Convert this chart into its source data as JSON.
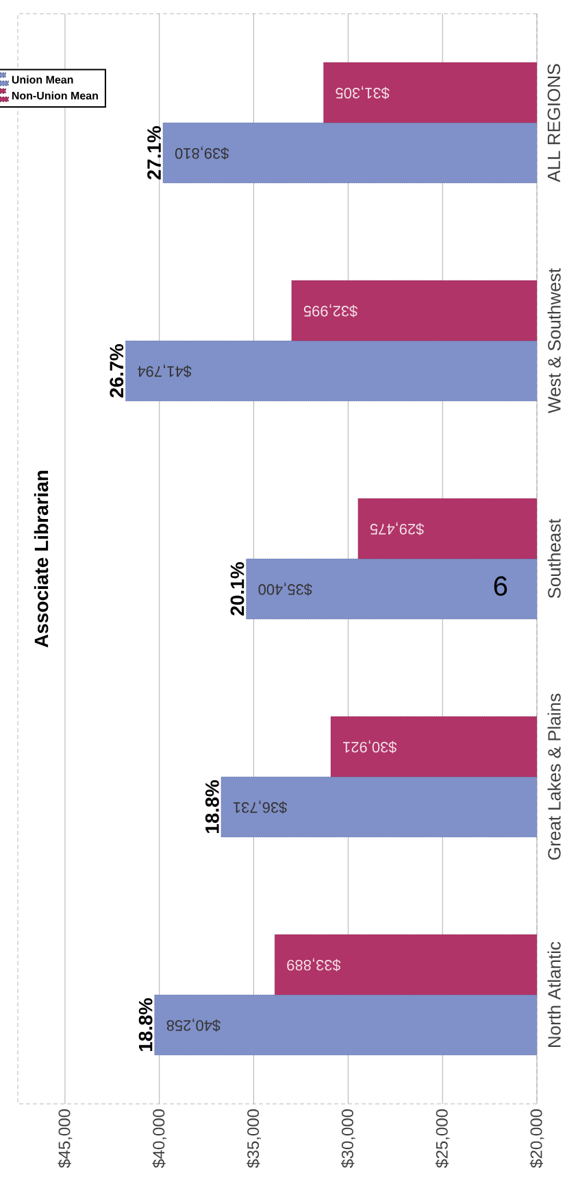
{
  "chart_data": {
    "type": "bar",
    "orientation": "horizontal",
    "title": "Associate Librarian",
    "categories": [
      "ALL REGIONS",
      "West & Southwest",
      "Southeast",
      "Great Lakes & Plains",
      "North Atlantic"
    ],
    "series": [
      {
        "name": "Union Mean",
        "color": "#8090c8",
        "values": [
          39810,
          41794,
          35400,
          36731,
          40258
        ],
        "value_labels": [
          "$39,810",
          "$41,794",
          "$35,400",
          "$36,731",
          "$40,258"
        ]
      },
      {
        "name": "Non-Union Mean",
        "color": "#b03468",
        "values": [
          31305,
          32995,
          29475,
          30921,
          33889
        ],
        "value_labels": [
          "$31,305",
          "$32,995",
          "$29,475",
          "$30,921",
          "$33,889"
        ]
      }
    ],
    "xlim": [
      47500,
      20000
    ],
    "xticks": [
      {
        "value": 45000,
        "label": "$45,000"
      },
      {
        "value": 40000,
        "label": "$40,000"
      },
      {
        "value": 35000,
        "label": "$35,000"
      },
      {
        "value": 30000,
        "label": "$30,000"
      },
      {
        "value": 25000,
        "label": "$25,000"
      },
      {
        "value": 20000,
        "label": "$20,000"
      }
    ],
    "grid": "x",
    "legend": "top left",
    "annotations": [
      {
        "text": "27.1%",
        "y": "ALL REGIONS",
        "x": 39810
      },
      {
        "text": "26.7%",
        "y": "West & Southwest",
        "x": 41794
      },
      {
        "text": "20.1%",
        "y": "Southeast",
        "x": 35400
      },
      {
        "text": "18.8%",
        "y": "Great Lakes & Plains",
        "x": 36731
      },
      {
        "text": "18.8%",
        "y": "North Atlantic",
        "x": 40258
      },
      "9"
    ]
  }
}
